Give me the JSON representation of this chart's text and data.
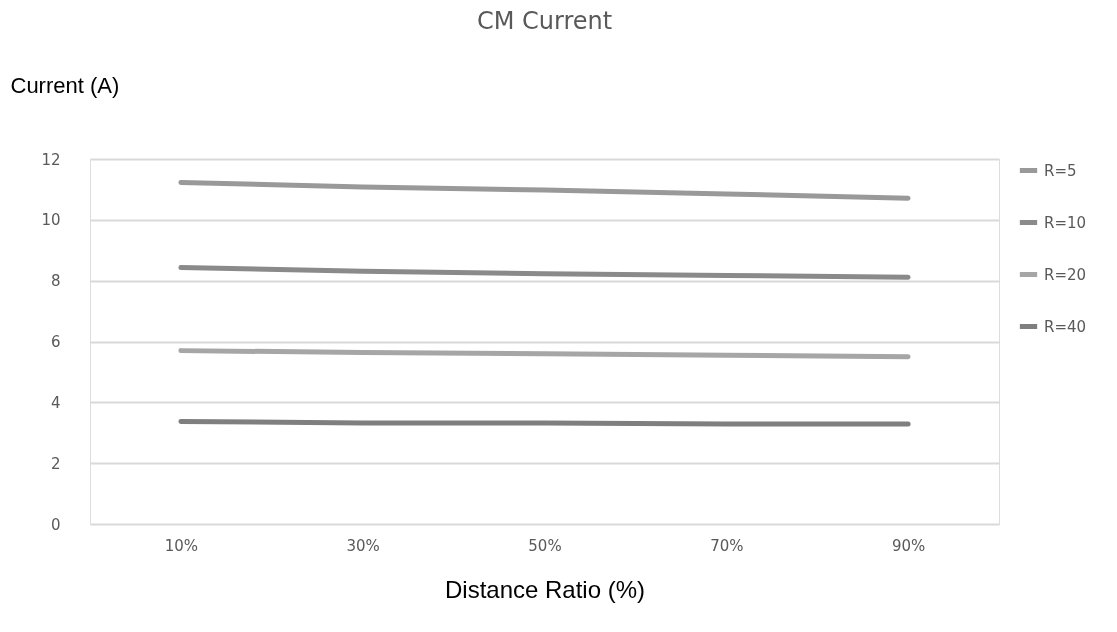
{
  "chart_data": {
    "type": "line",
    "title": "CM Current",
    "xlabel": "Distance Ratio (%)",
    "ylabel": "Current (A)",
    "categories": [
      "10%",
      "30%",
      "50%",
      "70%",
      "90%"
    ],
    "series": [
      {
        "name": "R=5",
        "color": "#999999",
        "values": [
          11.23,
          11.08,
          10.98,
          10.85,
          10.71
        ]
      },
      {
        "name": "R=10",
        "color": "#8a8a8a",
        "values": [
          8.43,
          8.31,
          8.23,
          8.17,
          8.11
        ]
      },
      {
        "name": "R=20",
        "color": "#a6a6a6",
        "values": [
          5.7,
          5.64,
          5.6,
          5.55,
          5.5
        ]
      },
      {
        "name": "R=40",
        "color": "#7f7f7f",
        "values": [
          3.37,
          3.32,
          3.32,
          3.29,
          3.29
        ]
      }
    ],
    "ylim": [
      0,
      12
    ],
    "yticks": [
      0,
      2,
      4,
      6,
      8,
      10,
      12
    ],
    "grid": "y",
    "legend": "right",
    "marker": "none",
    "line_style": "solid"
  }
}
